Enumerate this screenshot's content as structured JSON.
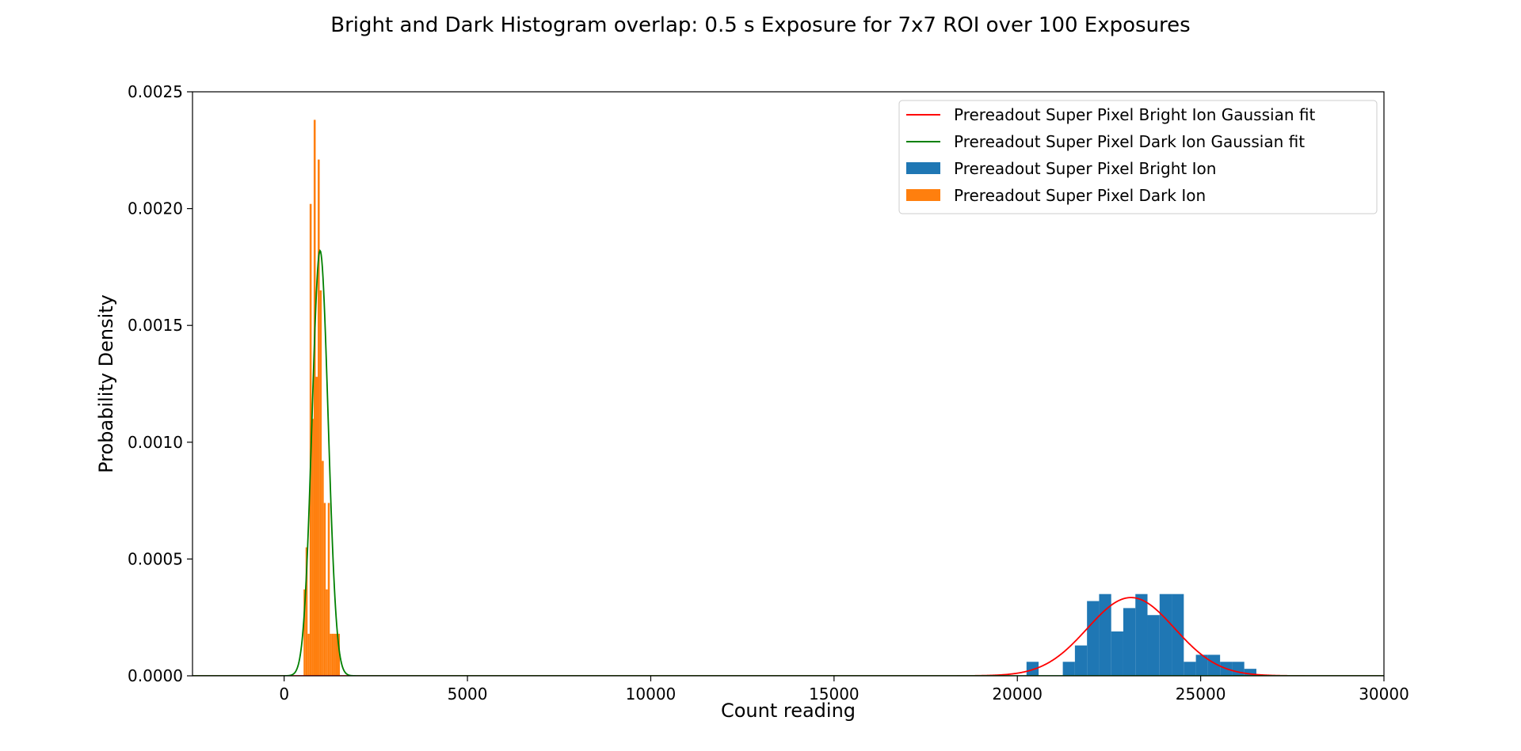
{
  "chart_data": {
    "type": "histogram",
    "title": "Bright and Dark Histogram overlap: 0.5 s Exposure for 7x7 ROI over 100 Exposures",
    "xlabel": "Count reading",
    "ylabel": "Probability Density",
    "xlim": [
      -2500,
      30000
    ],
    "ylim": [
      0,
      0.0025
    ],
    "x_ticks": [
      0,
      5000,
      10000,
      15000,
      20000,
      25000,
      30000
    ],
    "x_tick_labels": [
      "0",
      "5000",
      "10000",
      "15000",
      "20000",
      "25000",
      "30000"
    ],
    "y_ticks": [
      0,
      0.0005,
      0.001,
      0.0015,
      0.002,
      0.0025
    ],
    "y_tick_labels": [
      "0.0000",
      "0.0005",
      "0.0010",
      "0.0015",
      "0.0020",
      "0.0025"
    ],
    "grid": false,
    "legend_position": "top-right",
    "series": [
      {
        "name": "Prereadout Super Pixel Bright Ion Gaussian fit",
        "kind": "line",
        "color": "#ff0000",
        "mean": 23100,
        "sigma": 1190,
        "peak": 0.000335,
        "x_range": [
          -2500,
          30000
        ]
      },
      {
        "name": "Prereadout Super Pixel Dark Ion Gaussian fit",
        "kind": "line",
        "color": "#008000",
        "mean": 980,
        "sigma": 220,
        "peak": 0.00182,
        "x_range": [
          -2500,
          30000
        ]
      },
      {
        "name": "Prereadout Super Pixel Bright Ion",
        "kind": "hist",
        "color": "#1f77b4",
        "bin_edges": [
          20250,
          20580,
          20910,
          21240,
          21570,
          21900,
          22230,
          22560,
          22890,
          23220,
          23550,
          23880,
          24210,
          24540,
          24870,
          25200,
          25530,
          25860,
          26190,
          26520
        ],
        "densities": [
          6e-05,
          0,
          0,
          6e-05,
          0.00013,
          0.00032,
          0.00035,
          0.00019,
          0.00029,
          0.00035,
          0.00026,
          0.00035,
          0.00035,
          6e-05,
          9e-05,
          9e-05,
          6e-05,
          6e-05,
          3e-05
        ]
      },
      {
        "name": "Prereadout Super Pixel Dark Ion",
        "kind": "hist",
        "color": "#ff7f0e",
        "bin_edges": [
          530,
          585,
          640,
          695,
          750,
          805,
          860,
          915,
          970,
          1025,
          1080,
          1135,
          1190,
          1245,
          1300,
          1355,
          1410,
          1465,
          1520
        ],
        "densities": [
          0.00037,
          0.00055,
          0.00018,
          0.00202,
          0.0011,
          0.00238,
          0.00128,
          0.00221,
          0.00165,
          0.00092,
          0.00074,
          0.00037,
          0.00074,
          0.00018,
          0.00018,
          0.00018,
          0.00018,
          0.00018
        ]
      }
    ]
  }
}
